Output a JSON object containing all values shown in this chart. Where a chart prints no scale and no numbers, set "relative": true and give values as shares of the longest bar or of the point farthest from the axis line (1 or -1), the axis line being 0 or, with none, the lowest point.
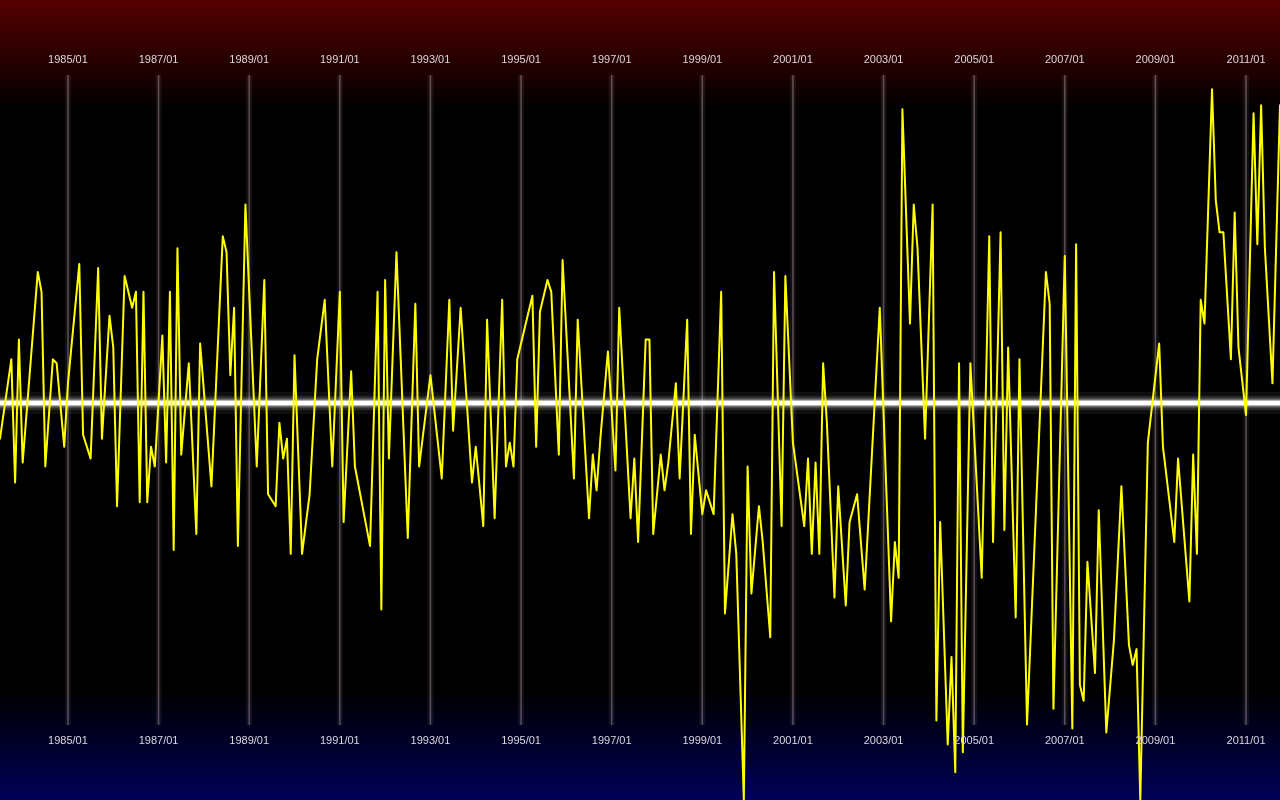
{
  "chart_data": {
    "type": "line",
    "relative": true,
    "grid": "x",
    "marker": "none",
    "xlim": [
      "1983-07",
      "2011-10"
    ],
    "x2lim": [
      "1983-07",
      "2011-10"
    ],
    "xticks": [
      {
        "value": "1985-01",
        "label": "1985/01"
      },
      {
        "value": "1987-01",
        "label": "1987/01"
      },
      {
        "value": "1989-01",
        "label": "1989/01"
      },
      {
        "value": "1991-01",
        "label": "1991/01"
      },
      {
        "value": "1993-01",
        "label": "1993/01"
      },
      {
        "value": "1995-01",
        "label": "1995/01"
      },
      {
        "value": "1997-01",
        "label": "1997/01"
      },
      {
        "value": "1999-01",
        "label": "1999/01"
      },
      {
        "value": "2001-01",
        "label": "2001/01"
      },
      {
        "value": "2003-01",
        "label": "2003/01"
      },
      {
        "value": "2005-01",
        "label": "2005/01"
      },
      {
        "value": "2007-01",
        "label": "2007/01"
      },
      {
        "value": "2009-01",
        "label": "2009/01"
      },
      {
        "value": "2011-01",
        "label": "2011/01"
      }
    ],
    "x2ticks": [
      {
        "value": "1985-01",
        "label": "1985/01"
      },
      {
        "value": "1987-01",
        "label": "1987/01"
      },
      {
        "value": "1989-01",
        "label": "1989/01"
      },
      {
        "value": "1991-01",
        "label": "1991/01"
      },
      {
        "value": "1993-01",
        "label": "1993/01"
      },
      {
        "value": "1995-01",
        "label": "1995/01"
      },
      {
        "value": "1997-01",
        "label": "1997/01"
      },
      {
        "value": "1999-01",
        "label": "1999/01"
      },
      {
        "value": "2001-01",
        "label": "2001/01"
      },
      {
        "value": "2003-01",
        "label": "2003/01"
      },
      {
        "value": "2005-01",
        "label": "2005/01"
      },
      {
        "value": "2007-01",
        "label": "2007/01"
      },
      {
        "value": "2009-01",
        "label": "2009/01"
      },
      {
        "value": "2011-01",
        "label": "2011/01"
      }
    ],
    "ref_lines": [
      {
        "axis": "y",
        "value": 0,
        "color": "#ffffff"
      }
    ],
    "x": [
      "1983-07",
      "1983-10",
      "1983-11",
      "1983-12",
      "1984-01",
      "1984-05",
      "1984-06",
      "1984-07",
      "1984-09",
      "1984-10",
      "1984-12",
      "1985-01",
      "1985-04",
      "1985-05",
      "1985-07",
      "1985-09",
      "1985-10",
      "1985-12",
      "1986-01",
      "1986-02",
      "1986-04",
      "1986-06",
      "1986-07",
      "1986-08",
      "1986-09",
      "1986-10",
      "1986-11",
      "1986-12",
      "1987-02",
      "1987-03",
      "1987-04",
      "1987-05",
      "1987-06",
      "1987-07",
      "1987-09",
      "1987-11",
      "1987-12",
      "1988-03",
      "1988-06",
      "1988-07",
      "1988-08",
      "1988-09",
      "1988-10",
      "1988-12",
      "1989-03",
      "1989-05",
      "1989-06",
      "1989-08",
      "1989-09",
      "1989-10",
      "1989-11",
      "1989-12",
      "1990-01",
      "1990-03",
      "1990-05",
      "1990-07",
      "1990-09",
      "1990-11",
      "1991-01",
      "1991-02",
      "1991-04",
      "1991-05",
      "1991-09",
      "1991-11",
      "1991-12",
      "1992-01",
      "1992-02",
      "1992-04",
      "1992-07",
      "1992-09",
      "1992-10",
      "1993-01",
      "1993-04",
      "1993-06",
      "1993-07",
      "1993-09",
      "1993-12",
      "1994-01",
      "1994-03",
      "1994-04",
      "1994-06",
      "1994-08",
      "1994-09",
      "1994-10",
      "1994-11",
      "1994-12",
      "1995-02",
      "1995-04",
      "1995-05",
      "1995-06",
      "1995-08",
      "1995-09",
      "1995-11",
      "1995-12",
      "1996-03",
      "1996-04",
      "1996-07",
      "1996-08",
      "1996-09",
      "1996-10",
      "1996-12",
      "1997-02",
      "1997-03",
      "1997-06",
      "1997-07",
      "1997-08",
      "1997-10",
      "1997-11",
      "1997-12",
      "1998-02",
      "1998-03",
      "1998-04",
      "1998-06",
      "1998-07",
      "1998-09",
      "1998-10",
      "1998-11",
      "1999-01",
      "1999-02",
      "1999-04",
      "1999-06",
      "1999-07",
      "1999-09",
      "1999-10",
      "1999-12",
      "2000-01",
      "2000-02",
      "2000-04",
      "2000-05",
      "2000-07",
      "2000-08",
      "2000-10",
      "2000-11",
      "2001-01",
      "2001-04",
      "2001-05",
      "2001-06",
      "2001-07",
      "2001-08",
      "2001-09",
      "2001-10",
      "2001-12",
      "2002-01",
      "2002-03",
      "2002-04",
      "2002-06",
      "2002-08",
      "2002-12",
      "2003-03",
      "2003-04",
      "2003-05",
      "2003-06",
      "2003-08",
      "2003-09",
      "2003-10",
      "2003-12",
      "2004-02",
      "2004-03",
      "2004-04",
      "2004-06",
      "2004-07",
      "2004-08",
      "2004-09",
      "2004-10",
      "2004-12",
      "2005-03",
      "2005-05",
      "2005-06",
      "2005-08",
      "2005-09",
      "2005-10",
      "2005-12",
      "2006-01",
      "2006-03",
      "2006-08",
      "2006-09",
      "2006-10",
      "2007-01",
      "2007-03",
      "2007-04",
      "2007-05",
      "2007-06",
      "2007-07",
      "2007-09",
      "2007-10",
      "2007-12",
      "2008-02",
      "2008-04",
      "2008-06",
      "2008-07",
      "2008-08",
      "2008-09",
      "2008-11",
      "2009-02",
      "2009-03",
      "2009-06",
      "2009-07",
      "2009-10",
      "2009-11",
      "2009-12",
      "2010-01",
      "2010-02",
      "2010-04",
      "2010-05",
      "2010-06",
      "2010-07",
      "2010-09",
      "2010-10",
      "2010-11",
      "2011-01",
      "2011-03",
      "2011-04",
      "2011-05",
      "2011-06",
      "2011-08",
      "2011-10"
    ],
    "series": [
      {
        "color": "#ffff00",
        "values": [
          -0.09,
          0.11,
          -0.2,
          0.16,
          -0.15,
          0.33,
          0.28,
          -0.16,
          0.11,
          0.1,
          -0.11,
          0.05,
          0.35,
          -0.08,
          -0.14,
          0.34,
          -0.09,
          0.22,
          0.14,
          -0.26,
          0.32,
          0.24,
          0.28,
          -0.25,
          0.28,
          -0.25,
          -0.11,
          -0.16,
          0.17,
          -0.15,
          0.28,
          -0.37,
          0.39,
          -0.13,
          0.1,
          -0.33,
          0.15,
          -0.21,
          0.42,
          0.38,
          0.07,
          0.24,
          -0.36,
          0.5,
          -0.16,
          0.31,
          -0.23,
          -0.26,
          -0.05,
          -0.14,
          -0.09,
          -0.38,
          0.12,
          -0.38,
          -0.23,
          0.11,
          0.26,
          -0.16,
          0.28,
          -0.3,
          0.08,
          -0.16,
          -0.36,
          0.28,
          -0.52,
          0.31,
          -0.14,
          0.38,
          -0.34,
          0.25,
          -0.16,
          0.07,
          -0.19,
          0.26,
          -0.07,
          0.24,
          -0.2,
          -0.11,
          -0.31,
          0.21,
          -0.29,
          0.26,
          -0.16,
          -0.1,
          -0.16,
          0.11,
          0.19,
          0.27,
          -0.11,
          0.23,
          0.31,
          0.28,
          -0.13,
          0.36,
          -0.19,
          0.21,
          -0.29,
          -0.13,
          -0.22,
          -0.09,
          0.13,
          -0.17,
          0.24,
          -0.29,
          -0.14,
          -0.35,
          0.16,
          0.16,
          -0.33,
          -0.13,
          -0.22,
          -0.15,
          0.05,
          -0.19,
          0.21,
          -0.33,
          -0.08,
          -0.28,
          -0.22,
          -0.28,
          0.28,
          -0.53,
          -0.28,
          -0.38,
          -1,
          -0.16,
          -0.48,
          -0.26,
          -0.35,
          -0.59,
          0.33,
          -0.31,
          0.32,
          -0.1,
          -0.31,
          -0.14,
          -0.38,
          -0.15,
          -0.38,
          0.1,
          -0.05,
          -0.49,
          -0.21,
          -0.51,
          -0.3,
          -0.23,
          -0.47,
          0.24,
          -0.55,
          -0.35,
          -0.44,
          0.74,
          0.2,
          0.5,
          0.39,
          -0.09,
          0.5,
          -0.8,
          -0.3,
          -0.86,
          -0.64,
          -0.93,
          0.1,
          -0.88,
          0.1,
          -0.44,
          0.42,
          -0.35,
          0.43,
          -0.32,
          0.14,
          -0.54,
          0.11,
          -0.81,
          0.33,
          0.25,
          -0.77,
          0.37,
          -0.82,
          0.4,
          -0.71,
          -0.75,
          -0.4,
          -0.68,
          -0.27,
          -0.83,
          -0.6,
          -0.21,
          -0.61,
          -0.66,
          -0.62,
          -1,
          -0.1,
          0.15,
          -0.11,
          -0.35,
          -0.14,
          -0.5,
          -0.13,
          -0.38,
          0.26,
          0.2,
          0.79,
          0.51,
          0.43,
          0.43,
          0.11,
          0.48,
          0.14,
          -0.03,
          0.73,
          0.4,
          0.75,
          0.39,
          0.05,
          0.75
        ]
      }
    ]
  }
}
